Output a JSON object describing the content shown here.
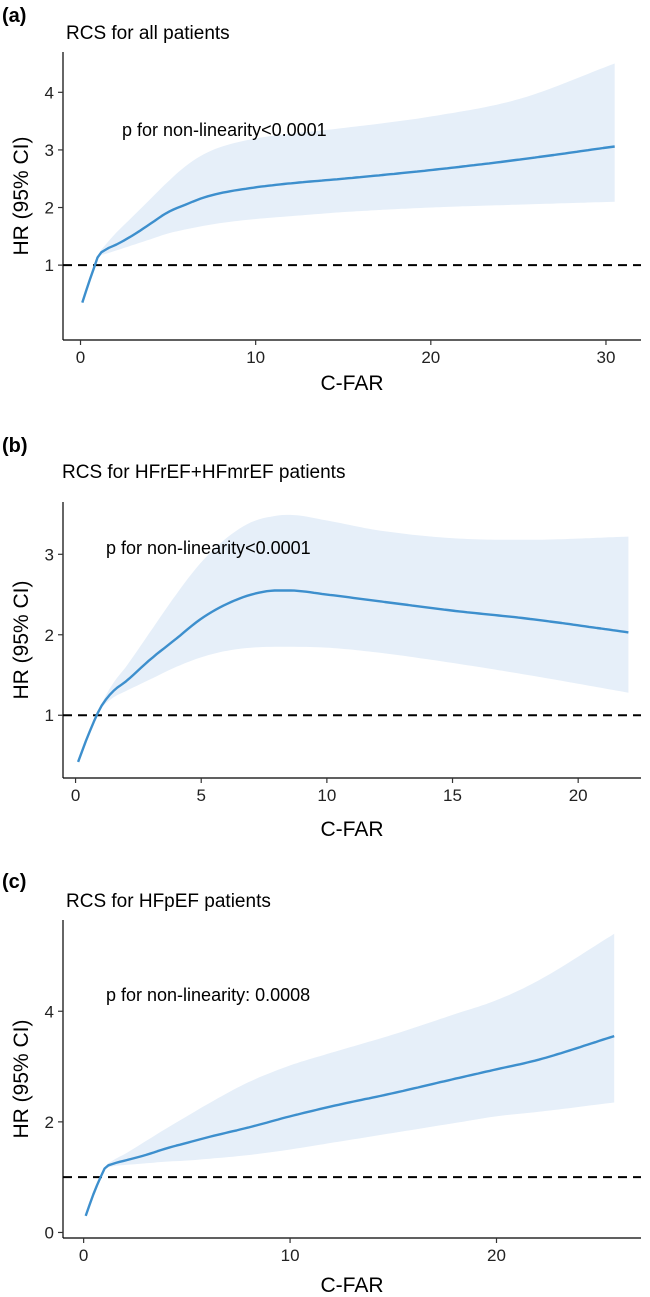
{
  "chart_data": [
    {
      "id": "a",
      "type": "line",
      "panel_label": "(a)",
      "title": "RCS for all patients",
      "annotation": "p for non-linearity<0.0001",
      "xlabel": "C-FAR",
      "ylabel": "HR (95% CI)",
      "xlim": [
        -1,
        32
      ],
      "ylim": [
        -0.3,
        4.7
      ],
      "xticks": [
        0,
        10,
        20,
        30
      ],
      "yticks": [
        1,
        2,
        3,
        4
      ],
      "reference_line": 1,
      "series": [
        {
          "name": "HR",
          "x": [
            0.1,
            0.5,
            0.8,
            1,
            1.5,
            2,
            3,
            4,
            5,
            6,
            7,
            8,
            10,
            12,
            15,
            20,
            25,
            30.5
          ],
          "values": [
            0.35,
            0.72,
            0.98,
            1.15,
            1.28,
            1.35,
            1.52,
            1.72,
            1.92,
            2.05,
            2.17,
            2.25,
            2.35,
            2.42,
            2.5,
            2.65,
            2.83,
            3.06
          ],
          "lower": [
            0.35,
            0.72,
            0.98,
            1.13,
            1.2,
            1.25,
            1.35,
            1.45,
            1.55,
            1.62,
            1.68,
            1.73,
            1.8,
            1.85,
            1.92,
            2.0,
            2.05,
            2.1
          ],
          "upper": [
            0.35,
            0.72,
            0.98,
            1.17,
            1.38,
            1.55,
            1.85,
            2.15,
            2.45,
            2.72,
            2.92,
            3.05,
            3.2,
            3.28,
            3.38,
            3.58,
            3.88,
            4.5
          ]
        }
      ]
    },
    {
      "id": "b",
      "type": "line",
      "panel_label": "(b)",
      "title": "RCS for HFrEF+HFmrEF patients",
      "annotation": "p for non-linearity<0.0001",
      "xlabel": "C-FAR",
      "ylabel": "HR (95% CI)",
      "xlim": [
        -0.5,
        22.5
      ],
      "ylim": [
        0.22,
        3.65
      ],
      "xticks": [
        0,
        5,
        10,
        15,
        20
      ],
      "yticks": [
        1,
        2,
        3
      ],
      "reference_line": 1,
      "series": [
        {
          "name": "HR",
          "x": [
            0.1,
            0.5,
            0.8,
            1,
            1.5,
            2,
            3,
            4,
            5,
            6,
            7,
            8,
            8.5,
            10,
            12,
            15,
            18,
            22
          ],
          "values": [
            0.42,
            0.75,
            0.97,
            1.1,
            1.3,
            1.42,
            1.7,
            1.95,
            2.2,
            2.38,
            2.5,
            2.55,
            2.55,
            2.5,
            2.42,
            2.3,
            2.2,
            2.03
          ],
          "lower": [
            0.42,
            0.75,
            0.97,
            1.08,
            1.22,
            1.3,
            1.45,
            1.6,
            1.72,
            1.8,
            1.84,
            1.85,
            1.85,
            1.84,
            1.78,
            1.65,
            1.5,
            1.28
          ],
          "upper": [
            0.42,
            0.75,
            0.97,
            1.12,
            1.4,
            1.6,
            2.05,
            2.5,
            2.9,
            3.2,
            3.4,
            3.48,
            3.49,
            3.42,
            3.3,
            3.2,
            3.18,
            3.22
          ]
        }
      ]
    },
    {
      "id": "c",
      "type": "line",
      "panel_label": "(c)",
      "title": "RCS for HFpEF patients",
      "annotation": "p for non-linearity: 0.0008",
      "xlabel": "C-FAR",
      "ylabel": "HR (95% CI)",
      "xlim": [
        -1,
        27
      ],
      "ylim": [
        -0.1,
        5.65
      ],
      "xticks": [
        0,
        10,
        20
      ],
      "yticks": [
        0,
        2,
        4
      ],
      "reference_line": 1,
      "series": [
        {
          "name": "HR",
          "x": [
            0.1,
            0.5,
            0.8,
            1,
            1.5,
            2,
            3,
            4,
            5,
            6,
            8,
            10,
            12,
            15,
            18,
            20,
            22,
            25.7
          ],
          "values": [
            0.3,
            0.72,
            0.98,
            1.15,
            1.25,
            1.3,
            1.4,
            1.52,
            1.62,
            1.72,
            1.9,
            2.1,
            2.28,
            2.52,
            2.78,
            2.95,
            3.12,
            3.55
          ],
          "lower": [
            0.3,
            0.72,
            0.98,
            1.13,
            1.2,
            1.22,
            1.25,
            1.28,
            1.3,
            1.33,
            1.4,
            1.5,
            1.62,
            1.8,
            1.98,
            2.1,
            2.18,
            2.35
          ],
          "upper": [
            0.3,
            0.72,
            0.98,
            1.17,
            1.32,
            1.42,
            1.65,
            1.88,
            2.1,
            2.32,
            2.72,
            3.02,
            3.25,
            3.58,
            3.95,
            4.2,
            4.55,
            5.4
          ]
        }
      ]
    }
  ]
}
